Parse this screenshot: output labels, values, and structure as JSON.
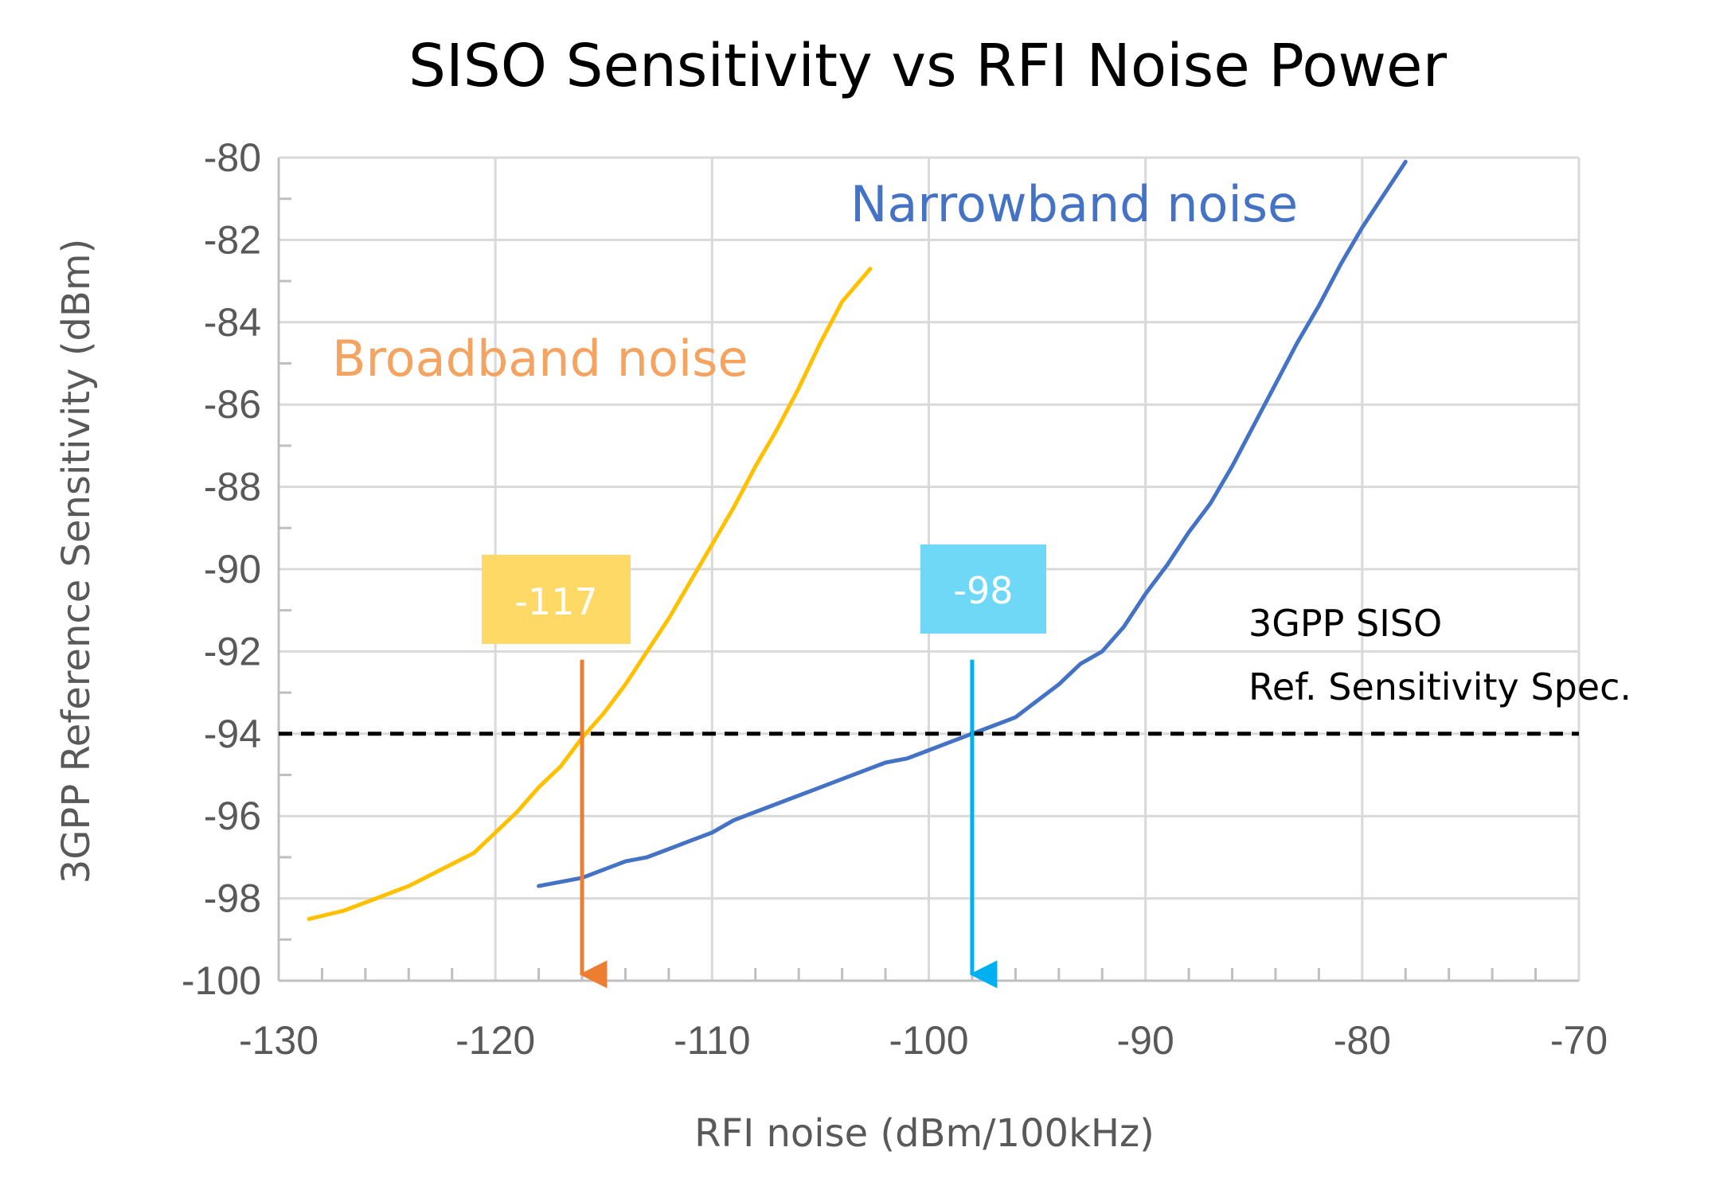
{
  "chart_data": {
    "type": "line",
    "title": "SISO Sensitivity vs RFI Noise Power",
    "xlabel": "RFI noise (dBm/100kHz)",
    "ylabel": "3GPP Reference Sensitivity (dBm)",
    "xlim": [
      -130,
      -70
    ],
    "ylim": [
      -100,
      -80
    ],
    "x_ticks": [
      -130,
      -120,
      -110,
      -100,
      -90,
      -80,
      -70
    ],
    "y_ticks": [
      -80,
      -82,
      -84,
      -86,
      -88,
      -90,
      -92,
      -94,
      -96,
      -98,
      -100
    ],
    "x_tick_labels": [
      "-130",
      "-120",
      "-110",
      "-100",
      "-90",
      "-80",
      "-70"
    ],
    "y_tick_labels": [
      "-80",
      "-82",
      "-84",
      "-86",
      "-88",
      "-90",
      "-92",
      "-94",
      "-96",
      "-98",
      "-100"
    ],
    "grid": true,
    "series": [
      {
        "name": "Broadband noise",
        "color": "#FFC000",
        "label_color": "#F4A460",
        "x": [
          -128.6,
          -127,
          -125.5,
          -124,
          -122.5,
          -121,
          -120,
          -119,
          -118,
          -117,
          -116,
          -115,
          -114,
          -113,
          -112,
          -111,
          -110,
          -109,
          -108,
          -107,
          -106,
          -105,
          -104,
          -102.7
        ],
        "y": [
          -98.5,
          -98.3,
          -98.0,
          -97.7,
          -97.3,
          -96.9,
          -96.4,
          -95.9,
          -95.3,
          -94.8,
          -94.1,
          -93.5,
          -92.8,
          -92.0,
          -91.2,
          -90.3,
          -89.4,
          -88.5,
          -87.5,
          -86.6,
          -85.6,
          -84.5,
          -83.5,
          -82.7
        ]
      },
      {
        "name": "Narrowband noise",
        "color": "#4472C4",
        "label_color": "#4472C4",
        "x": [
          -118,
          -117,
          -116,
          -115,
          -114,
          -113,
          -112,
          -111,
          -110,
          -109,
          -108,
          -106,
          -104,
          -102,
          -101,
          -100,
          -99,
          -98,
          -97,
          -96,
          -95,
          -94,
          -93,
          -92,
          -91,
          -90,
          -89,
          -88,
          -87,
          -86,
          -85,
          -84,
          -83,
          -82,
          -81,
          -80,
          -79,
          -78
        ],
        "y": [
          -97.7,
          -97.6,
          -97.5,
          -97.3,
          -97.1,
          -97.0,
          -96.8,
          -96.6,
          -96.4,
          -96.1,
          -95.9,
          -95.5,
          -95.1,
          -94.7,
          -94.6,
          -94.4,
          -94.2,
          -94.0,
          -93.8,
          -93.6,
          -93.2,
          -92.8,
          -92.3,
          -92.0,
          -91.4,
          -90.6,
          -89.9,
          -89.1,
          -88.4,
          -87.5,
          -86.5,
          -85.5,
          -84.5,
          -83.6,
          -82.6,
          -81.7,
          -80.9,
          -80.1
        ]
      }
    ],
    "reference_line": {
      "y": -94,
      "style": "dashed",
      "color": "#000000",
      "label": [
        "3GPP SISO",
        "Ref. Sensitivity Spec."
      ]
    },
    "annotations": [
      {
        "text": "-117",
        "x": -116,
        "y_from": -92.2,
        "y_to": -100,
        "box_color": "#FFD966",
        "arrow_color": "#ED7D31"
      },
      {
        "text": "-98",
        "x": -98,
        "y_from": -92.2,
        "y_to": -100,
        "box_color": "#6FD8F7",
        "arrow_color": "#00B0F0"
      }
    ]
  }
}
